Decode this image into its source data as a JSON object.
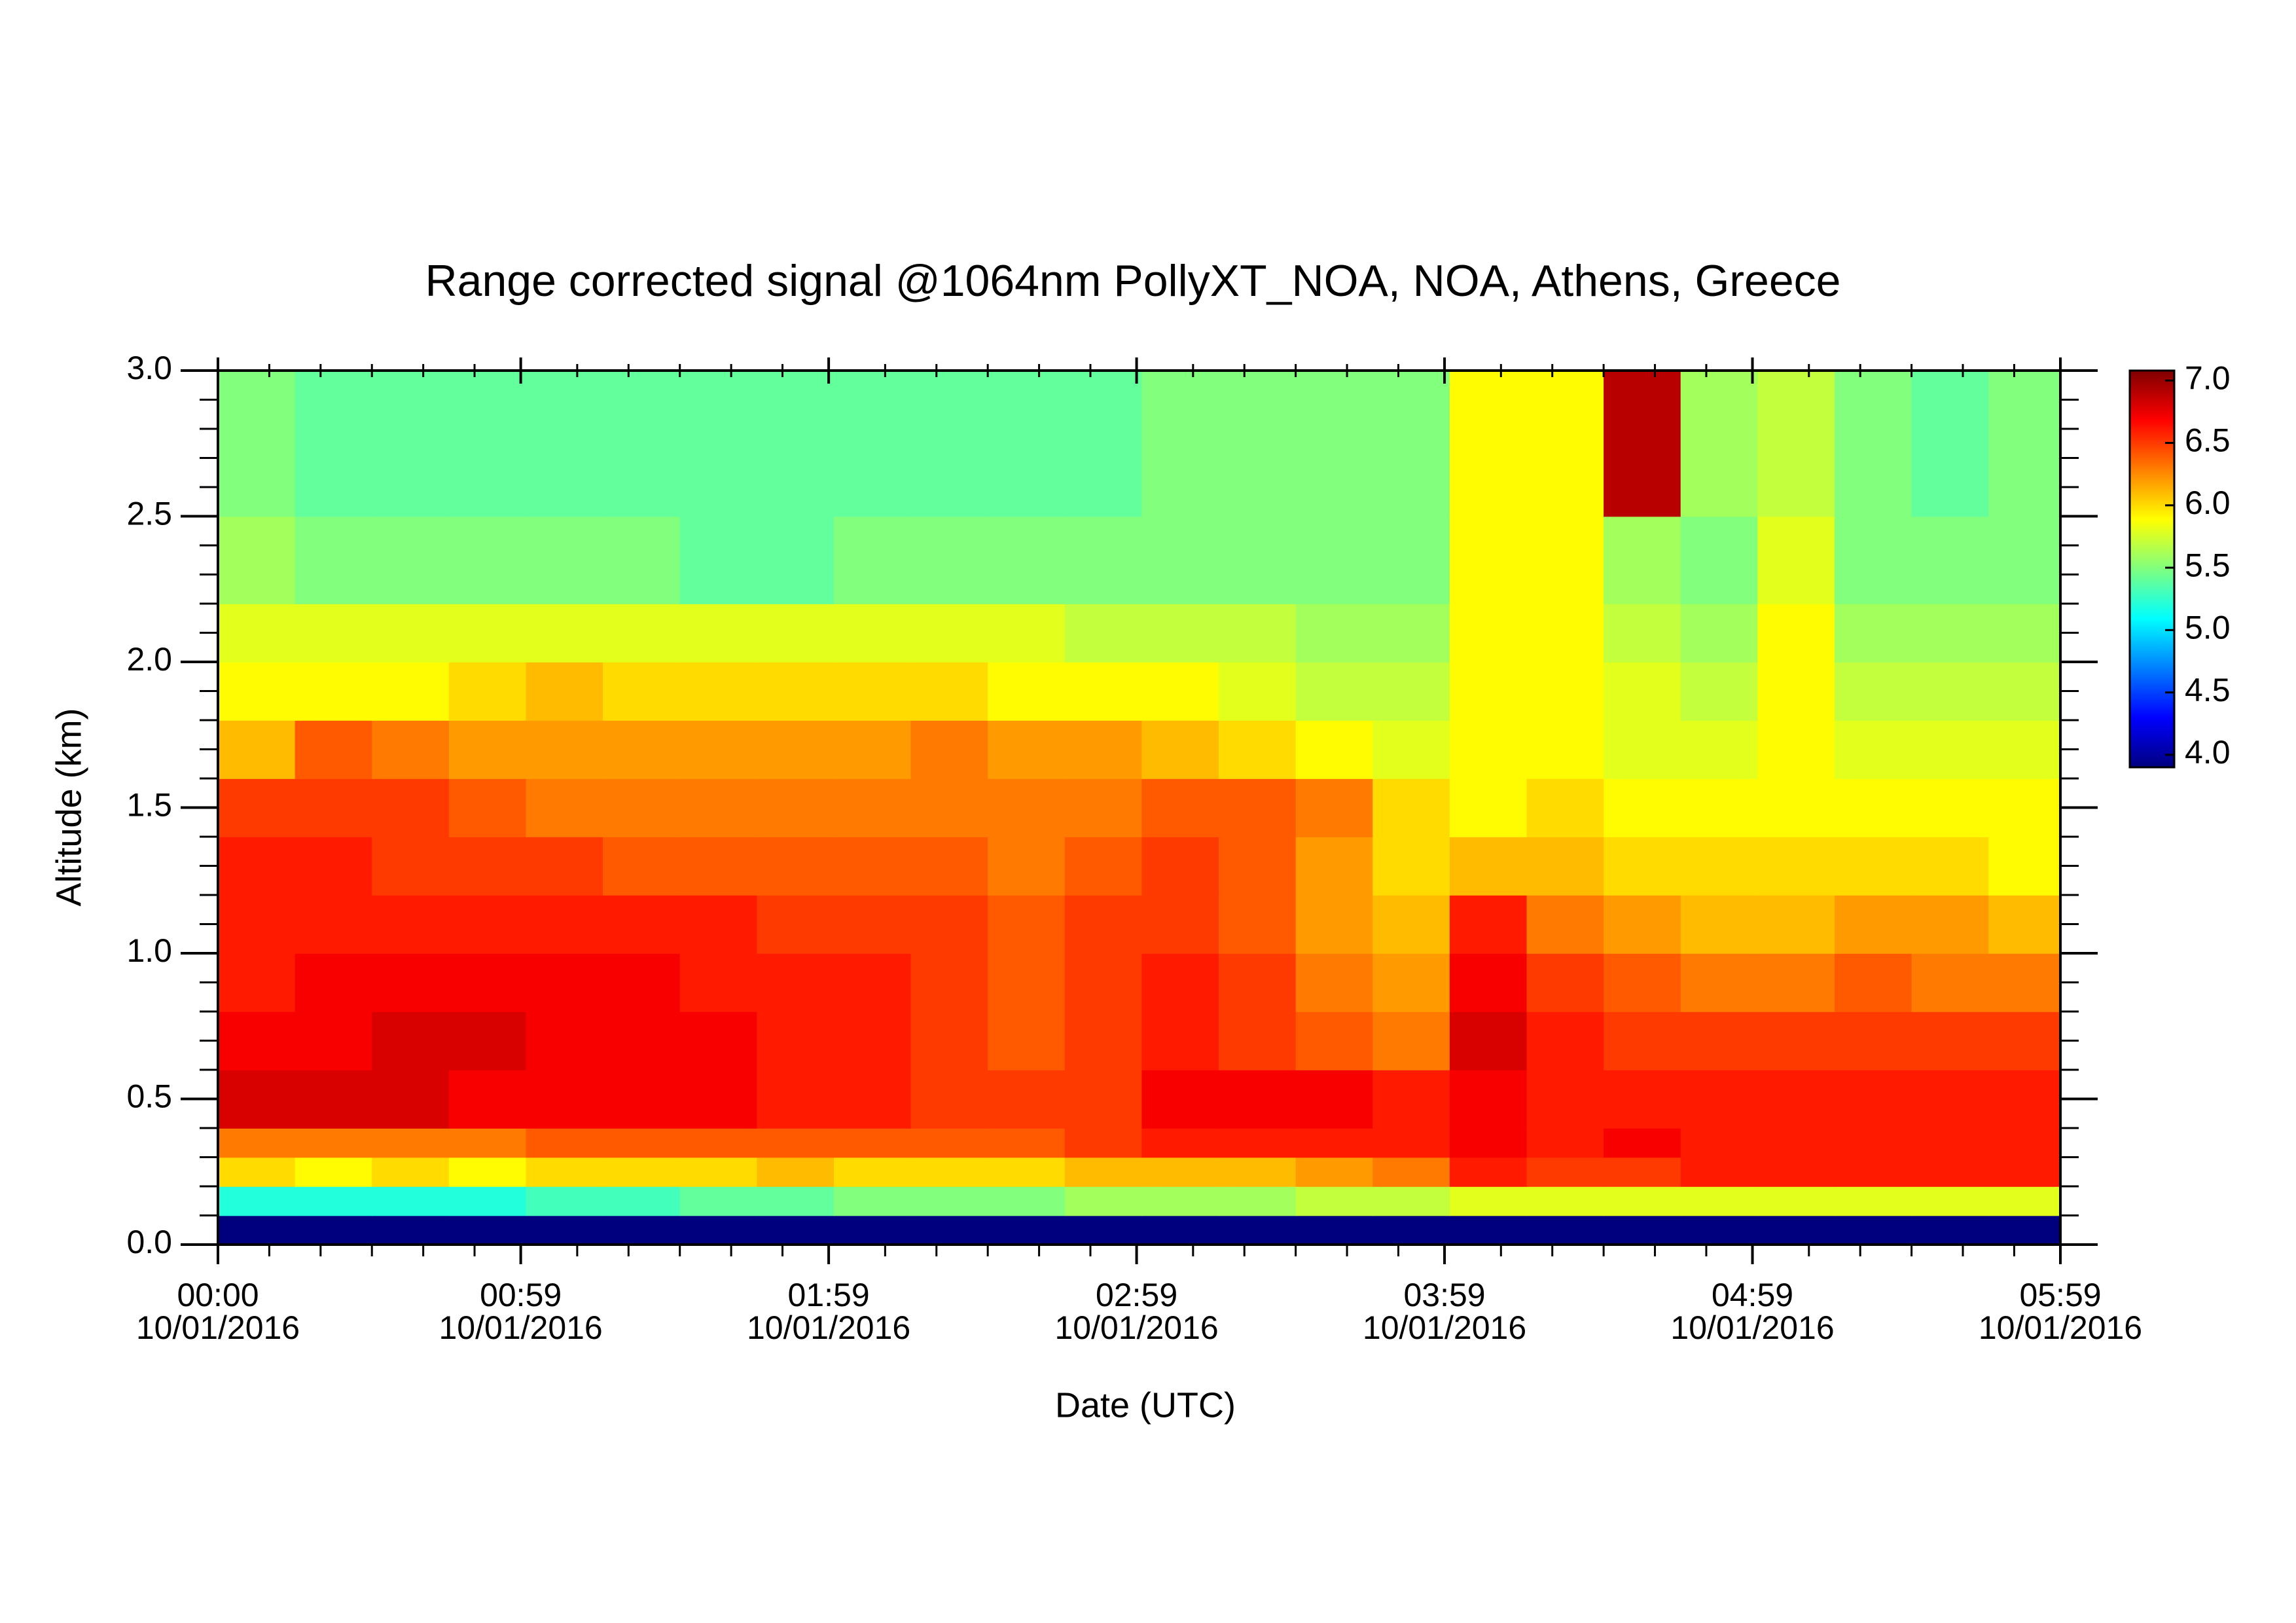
{
  "chart_data": {
    "type": "heatmap",
    "title": "Range corrected signal @1064nm  PollyXT_NOA, NOA, Athens, Greece",
    "xlabel": "Date (UTC)",
    "ylabel": "Altitude (km)",
    "xlim": [
      0,
      359
    ],
    "xticks": [
      {
        "value": 0,
        "label": [
          "00:00",
          "10/01/2016"
        ]
      },
      {
        "value": 59,
        "label": [
          "00:59",
          "10/01/2016"
        ]
      },
      {
        "value": 119,
        "label": [
          "01:59",
          "10/01/2016"
        ]
      },
      {
        "value": 179,
        "label": [
          "02:59",
          "10/01/2016"
        ]
      },
      {
        "value": 239,
        "label": [
          "03:59",
          "10/01/2016"
        ]
      },
      {
        "value": 299,
        "label": [
          "04:59",
          "10/01/2016"
        ]
      },
      {
        "value": 359,
        "label": [
          "05:59",
          "10/01/2016"
        ]
      }
    ],
    "x_minor_ticks": [
      10,
      20,
      30,
      40,
      50,
      70,
      80,
      90,
      100,
      110,
      130,
      140,
      150,
      160,
      170,
      190,
      200,
      210,
      220,
      230,
      250,
      260,
      270,
      280,
      290,
      310,
      320,
      330,
      340,
      350
    ],
    "ylim": [
      0,
      3
    ],
    "yticks": [
      {
        "value": 0,
        "label": "0.0"
      },
      0.5,
      {
        "value": 1,
        "label": "1.0"
      },
      1.5,
      {
        "value": 2,
        "label": "2.0"
      },
      2.5,
      {
        "value": 3,
        "label": "3.0"
      }
    ],
    "y_minor_ticks": [
      0.1,
      0.2,
      0.3,
      0.4,
      0.6,
      0.7,
      0.8,
      0.9,
      1.1,
      1.2,
      1.3,
      1.4,
      1.6,
      1.7,
      1.8,
      1.9,
      2.1,
      2.2,
      2.3,
      2.4,
      2.6,
      2.7,
      2.8,
      2.9
    ],
    "x_edges": [
      0,
      15,
      30,
      45,
      60,
      75,
      90,
      105,
      120,
      135,
      150,
      165,
      180,
      195,
      210,
      225,
      240,
      255,
      270,
      285,
      300,
      315,
      330,
      345,
      359
    ],
    "y_edges": [
      0,
      0.1,
      0.2,
      0.3,
      0.4,
      0.6,
      0.8,
      1.0,
      1.2,
      1.4,
      1.6,
      1.8,
      2.0,
      2.2,
      2.5,
      3.0
    ],
    "z": [
      [
        3.9,
        3.9,
        3.9,
        3.9,
        3.9,
        3.9,
        3.9,
        3.9,
        3.9,
        3.9,
        3.9,
        3.9,
        3.9,
        3.9,
        3.9,
        3.9,
        3.9,
        3.9,
        3.9,
        3.9,
        3.9,
        3.9,
        3.9,
        3.9
      ],
      [
        5.2,
        5.2,
        5.2,
        5.2,
        5.3,
        5.3,
        5.4,
        5.4,
        5.5,
        5.5,
        5.5,
        5.6,
        5.6,
        5.6,
        5.7,
        5.7,
        5.8,
        5.8,
        5.8,
        5.8,
        5.8,
        5.8,
        5.8,
        5.8
      ],
      [
        6.0,
        5.9,
        6.0,
        5.9,
        6.0,
        6.0,
        6.0,
        6.1,
        6.0,
        6.0,
        6.0,
        6.1,
        6.1,
        6.1,
        6.2,
        6.3,
        6.6,
        6.5,
        6.5,
        6.6,
        6.6,
        6.6,
        6.6,
        6.6
      ],
      [
        6.3,
        6.3,
        6.3,
        6.3,
        6.4,
        6.4,
        6.4,
        6.4,
        6.4,
        6.4,
        6.4,
        6.5,
        6.6,
        6.6,
        6.6,
        6.6,
        6.7,
        6.6,
        6.7,
        6.6,
        6.6,
        6.6,
        6.6,
        6.6
      ],
      [
        6.8,
        6.8,
        6.8,
        6.7,
        6.7,
        6.7,
        6.7,
        6.6,
        6.6,
        6.5,
        6.5,
        6.5,
        6.7,
        6.7,
        6.7,
        6.6,
        6.7,
        6.6,
        6.6,
        6.6,
        6.6,
        6.6,
        6.6,
        6.6
      ],
      [
        6.7,
        6.7,
        6.8,
        6.8,
        6.7,
        6.7,
        6.7,
        6.6,
        6.6,
        6.5,
        6.4,
        6.5,
        6.6,
        6.5,
        6.4,
        6.3,
        6.8,
        6.6,
        6.5,
        6.5,
        6.5,
        6.5,
        6.5,
        6.5
      ],
      [
        6.6,
        6.7,
        6.7,
        6.7,
        6.7,
        6.7,
        6.6,
        6.6,
        6.6,
        6.5,
        6.4,
        6.5,
        6.6,
        6.5,
        6.3,
        6.2,
        6.7,
        6.5,
        6.4,
        6.3,
        6.3,
        6.4,
        6.3,
        6.3
      ],
      [
        6.6,
        6.6,
        6.6,
        6.6,
        6.6,
        6.6,
        6.6,
        6.5,
        6.5,
        6.5,
        6.4,
        6.5,
        6.5,
        6.4,
        6.2,
        6.1,
        6.6,
        6.3,
        6.2,
        6.1,
        6.1,
        6.2,
        6.2,
        6.1
      ],
      [
        6.6,
        6.6,
        6.5,
        6.5,
        6.5,
        6.4,
        6.4,
        6.4,
        6.4,
        6.4,
        6.3,
        6.4,
        6.5,
        6.4,
        6.2,
        6.0,
        6.1,
        6.1,
        6.0,
        6.0,
        6.0,
        6.0,
        6.0,
        5.9
      ],
      [
        6.5,
        6.5,
        6.5,
        6.4,
        6.3,
        6.3,
        6.3,
        6.3,
        6.3,
        6.3,
        6.3,
        6.3,
        6.4,
        6.4,
        6.3,
        6.0,
        5.9,
        6.0,
        5.9,
        5.9,
        5.9,
        5.9,
        5.9,
        5.9
      ],
      [
        6.1,
        6.4,
        6.3,
        6.2,
        6.2,
        6.2,
        6.2,
        6.2,
        6.2,
        6.3,
        6.2,
        6.2,
        6.1,
        6.0,
        5.9,
        5.8,
        5.9,
        5.9,
        5.8,
        5.8,
        5.9,
        5.8,
        5.8,
        5.8
      ],
      [
        5.9,
        5.9,
        5.9,
        6.0,
        6.1,
        6.0,
        6.0,
        6.0,
        6.0,
        6.0,
        5.9,
        5.9,
        5.9,
        5.8,
        5.7,
        5.7,
        5.9,
        5.9,
        5.8,
        5.7,
        5.9,
        5.7,
        5.7,
        5.7
      ],
      [
        5.8,
        5.8,
        5.8,
        5.8,
        5.8,
        5.8,
        5.8,
        5.8,
        5.8,
        5.8,
        5.8,
        5.7,
        5.7,
        5.7,
        5.6,
        5.6,
        5.9,
        5.9,
        5.7,
        5.6,
        5.9,
        5.6,
        5.6,
        5.6
      ],
      [
        5.6,
        5.5,
        5.5,
        5.5,
        5.5,
        5.5,
        5.4,
        5.4,
        5.5,
        5.5,
        5.5,
        5.5,
        5.5,
        5.5,
        5.5,
        5.5,
        5.9,
        5.9,
        5.6,
        5.5,
        5.8,
        5.5,
        5.5,
        5.5
      ],
      [
        5.5,
        5.4,
        5.4,
        5.4,
        5.4,
        5.4,
        5.4,
        5.4,
        5.4,
        5.4,
        5.4,
        5.4,
        5.5,
        5.5,
        5.5,
        5.5,
        5.9,
        5.9,
        6.9,
        5.6,
        5.7,
        5.5,
        5.4,
        5.5
      ]
    ],
    "clim": [
      3.9,
      7.08
    ],
    "cticks": [
      {
        "value": 4,
        "label": "4.0"
      },
      4.5,
      {
        "value": 5,
        "label": "5.0"
      },
      5.5,
      {
        "value": 6,
        "label": "6.0"
      },
      6.5,
      {
        "value": 7,
        "label": "7.0"
      }
    ],
    "colormap": [
      "#00007f",
      "#0000ff",
      "#007fff",
      "#00ffff",
      "#7fff7f",
      "#ffff00",
      "#ff7f00",
      "#ff0000",
      "#7f0000"
    ]
  }
}
